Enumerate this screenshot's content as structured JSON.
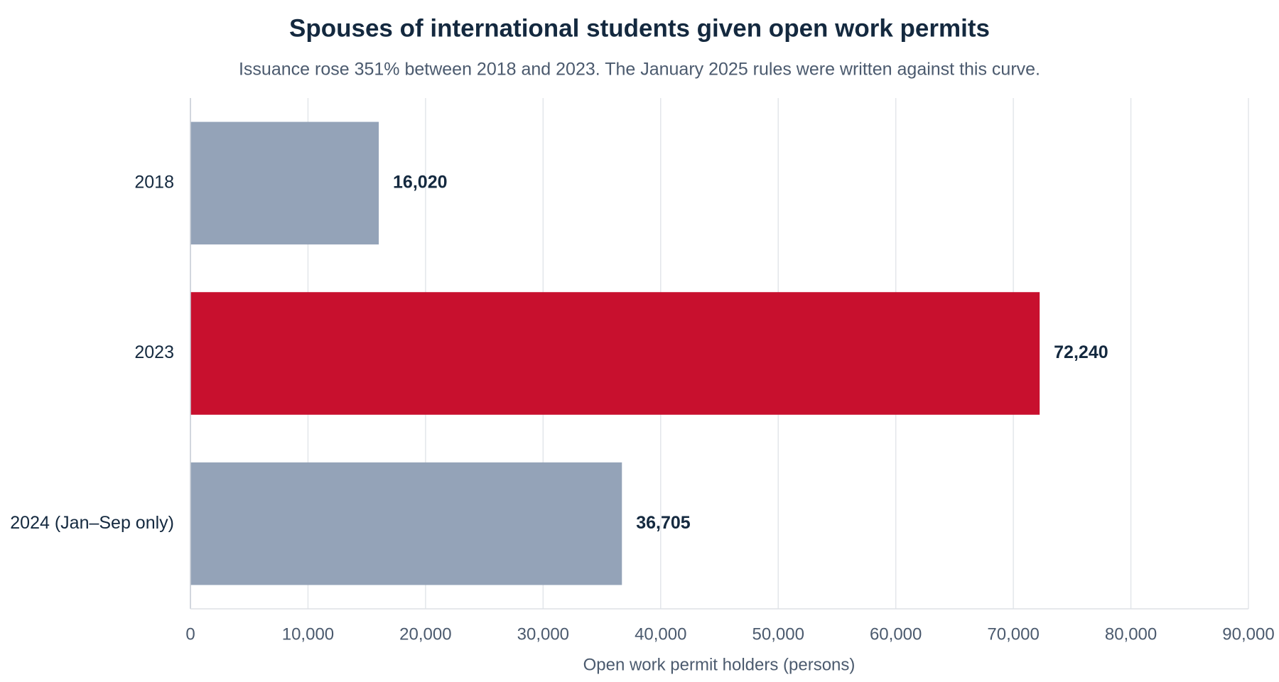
{
  "chart_data": {
    "type": "bar",
    "orientation": "horizontal",
    "title": "Spouses of international students given open work permits",
    "subtitle": "Issuance rose 351% between 2018 and 2023. The January 2025 rules were written against this curve.",
    "x_label": "Open work permit holders (persons)",
    "categories": [
      "2018",
      "2023",
      "2024 (Jan–Sep only)"
    ],
    "values": [
      16020,
      72240,
      36705
    ],
    "value_labels": [
      "16,020",
      "72,240",
      "36,705"
    ],
    "colors": [
      "#94a3b8",
      "#c8102e",
      "#94a3b8"
    ],
    "xlim": [
      0,
      90000
    ],
    "xticks": [
      0,
      {
        "value": 10000,
        "label": "10,000"
      },
      {
        "value": 20000,
        "label": "20,000"
      },
      {
        "value": 30000,
        "label": "30,000"
      },
      {
        "value": 40000,
        "label": "40,000"
      },
      {
        "value": 50000,
        "label": "50,000"
      },
      {
        "value": 60000,
        "label": "60,000"
      },
      {
        "value": 70000,
        "label": "70,000"
      },
      {
        "value": 80000,
        "label": "80,000"
      },
      {
        "value": 90000,
        "label": "90,000"
      }
    ],
    "grid": true
  }
}
